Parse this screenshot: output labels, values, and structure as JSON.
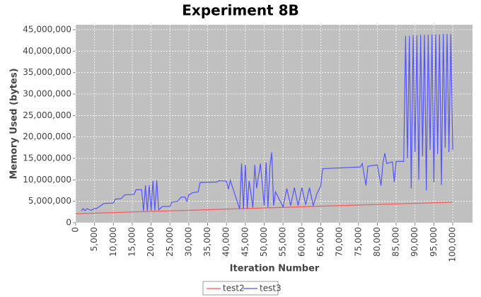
{
  "chart_data": {
    "type": "line",
    "title": "Experiment 8B",
    "x_label": "Iteration Number",
    "y_label": "Memory Used (bytes)",
    "xlim": [
      0,
      105250
    ],
    "ylim": [
      0,
      46150000
    ],
    "xticks": [
      0,
      {
        "value": 5000,
        "label": "5,000"
      },
      {
        "value": 10000,
        "label": "10,000"
      },
      {
        "value": 15000,
        "label": "15,000"
      },
      {
        "value": 20000,
        "label": "20,000"
      },
      {
        "value": 25000,
        "label": "25,000"
      },
      {
        "value": 30000,
        "label": "30,000"
      },
      {
        "value": 35000,
        "label": "35,000"
      },
      {
        "value": 40000,
        "label": "40,000"
      },
      {
        "value": 45000,
        "label": "45,000"
      },
      {
        "value": 50000,
        "label": "50,000"
      },
      {
        "value": 55000,
        "label": "55,000"
      },
      {
        "value": 60000,
        "label": "60,000"
      },
      {
        "value": 65000,
        "label": "65,000"
      },
      {
        "value": 70000,
        "label": "70,000"
      },
      {
        "value": 75000,
        "label": "75,000"
      },
      {
        "value": 80000,
        "label": "80,000"
      },
      {
        "value": 85000,
        "label": "85,000"
      },
      {
        "value": 90000,
        "label": "90,000"
      },
      {
        "value": 95000,
        "label": "95,000"
      },
      {
        "value": 100000,
        "label": "100,000"
      }
    ],
    "yticks": [
      0,
      {
        "value": 5000000,
        "label": "5,000,000"
      },
      {
        "value": 10000000,
        "label": "10,000,000"
      },
      {
        "value": 15000000,
        "label": "15,000,000"
      },
      {
        "value": 20000000,
        "label": "20,000,000"
      },
      {
        "value": 25000000,
        "label": "25,000,000"
      },
      {
        "value": 30000000,
        "label": "30,000,000"
      },
      {
        "value": 35000000,
        "label": "35,000,000"
      },
      {
        "value": 40000000,
        "label": "40,000,000"
      },
      {
        "value": 45000000,
        "label": "45,000,000"
      }
    ],
    "grid": true,
    "legend": "bottom",
    "series": [
      {
        "name": "test2",
        "color": "#ff5555",
        "x": [
          0,
          100000
        ],
        "values": [
          2100000,
          4800000
        ]
      },
      {
        "name": "test3",
        "color": "#5555ff",
        "x": [
          1500,
          2000,
          2500,
          3000,
          4000,
          5000,
          5500,
          7500,
          10000,
          10500,
          12000,
          13000,
          15500,
          16000,
          17500,
          18000,
          18500,
          19000,
          19500,
          20000,
          20500,
          21000,
          21500,
          22000,
          23000,
          25000,
          25500,
          27000,
          28000,
          29000,
          29500,
          30000,
          31000,
          32500,
          33000,
          37500,
          38000,
          40000,
          40500,
          41000,
          43500,
          44000,
          44500,
          45000,
          45500,
          46000,
          47000,
          47500,
          48000,
          49000,
          50000,
          50500,
          51000,
          51500,
          52000,
          52500,
          53000,
          55000,
          56000,
          57000,
          58000,
          59000,
          60000,
          61000,
          62000,
          63000,
          64000,
          65000,
          65500,
          75500,
          76000,
          77000,
          77500,
          80000,
          81000,
          81500,
          82000,
          82500,
          84000,
          84500,
          85000,
          87000,
          87500,
          88000,
          88500,
          89000,
          89500,
          90000,
          90500,
          91000,
          91500,
          92000,
          92500,
          93000,
          93500,
          94000,
          94500,
          95000,
          95500,
          96000,
          96500,
          97000,
          97500,
          98000,
          98500,
          99000,
          99500,
          100000
        ],
        "values": [
          2800000,
          3300000,
          2800000,
          3300000,
          2900000,
          3300000,
          3300000,
          4500000,
          4600000,
          5500000,
          5600000,
          6500000,
          6600000,
          7700000,
          7700000,
          2700000,
          8700000,
          2700000,
          8700000,
          2800000,
          9800000,
          2800000,
          9900000,
          3000000,
          3800000,
          3800000,
          4800000,
          5000000,
          6000000,
          6000000,
          5000000,
          6500000,
          7000000,
          7200000,
          9400000,
          9500000,
          9800000,
          9700000,
          7800000,
          9900000,
          3200000,
          13800000,
          3200000,
          13500000,
          3300000,
          9800000,
          3500000,
          13500000,
          8000000,
          13800000,
          4000000,
          14000000,
          3600000,
          13000000,
          16400000,
          4000000,
          7200000,
          3700000,
          8000000,
          4000000,
          8200000,
          4000000,
          8200000,
          4200000,
          8200000,
          4000000,
          6800000,
          8600000,
          12600000,
          13000000,
          13800000,
          8700000,
          13200000,
          13500000,
          8700000,
          14000000,
          16200000,
          13800000,
          14200000,
          9500000,
          14300000,
          14300000,
          43500000,
          15000000,
          43600000,
          8000000,
          43700000,
          16500000,
          43700000,
          10000000,
          43800000,
          15500000,
          43800000,
          7500000,
          43800000,
          17000000,
          43900000,
          9500000,
          43900000,
          16000000,
          43900000,
          8800000,
          44000000,
          17500000,
          44000000,
          16500000,
          44000000,
          17000000
        ]
      }
    ]
  }
}
